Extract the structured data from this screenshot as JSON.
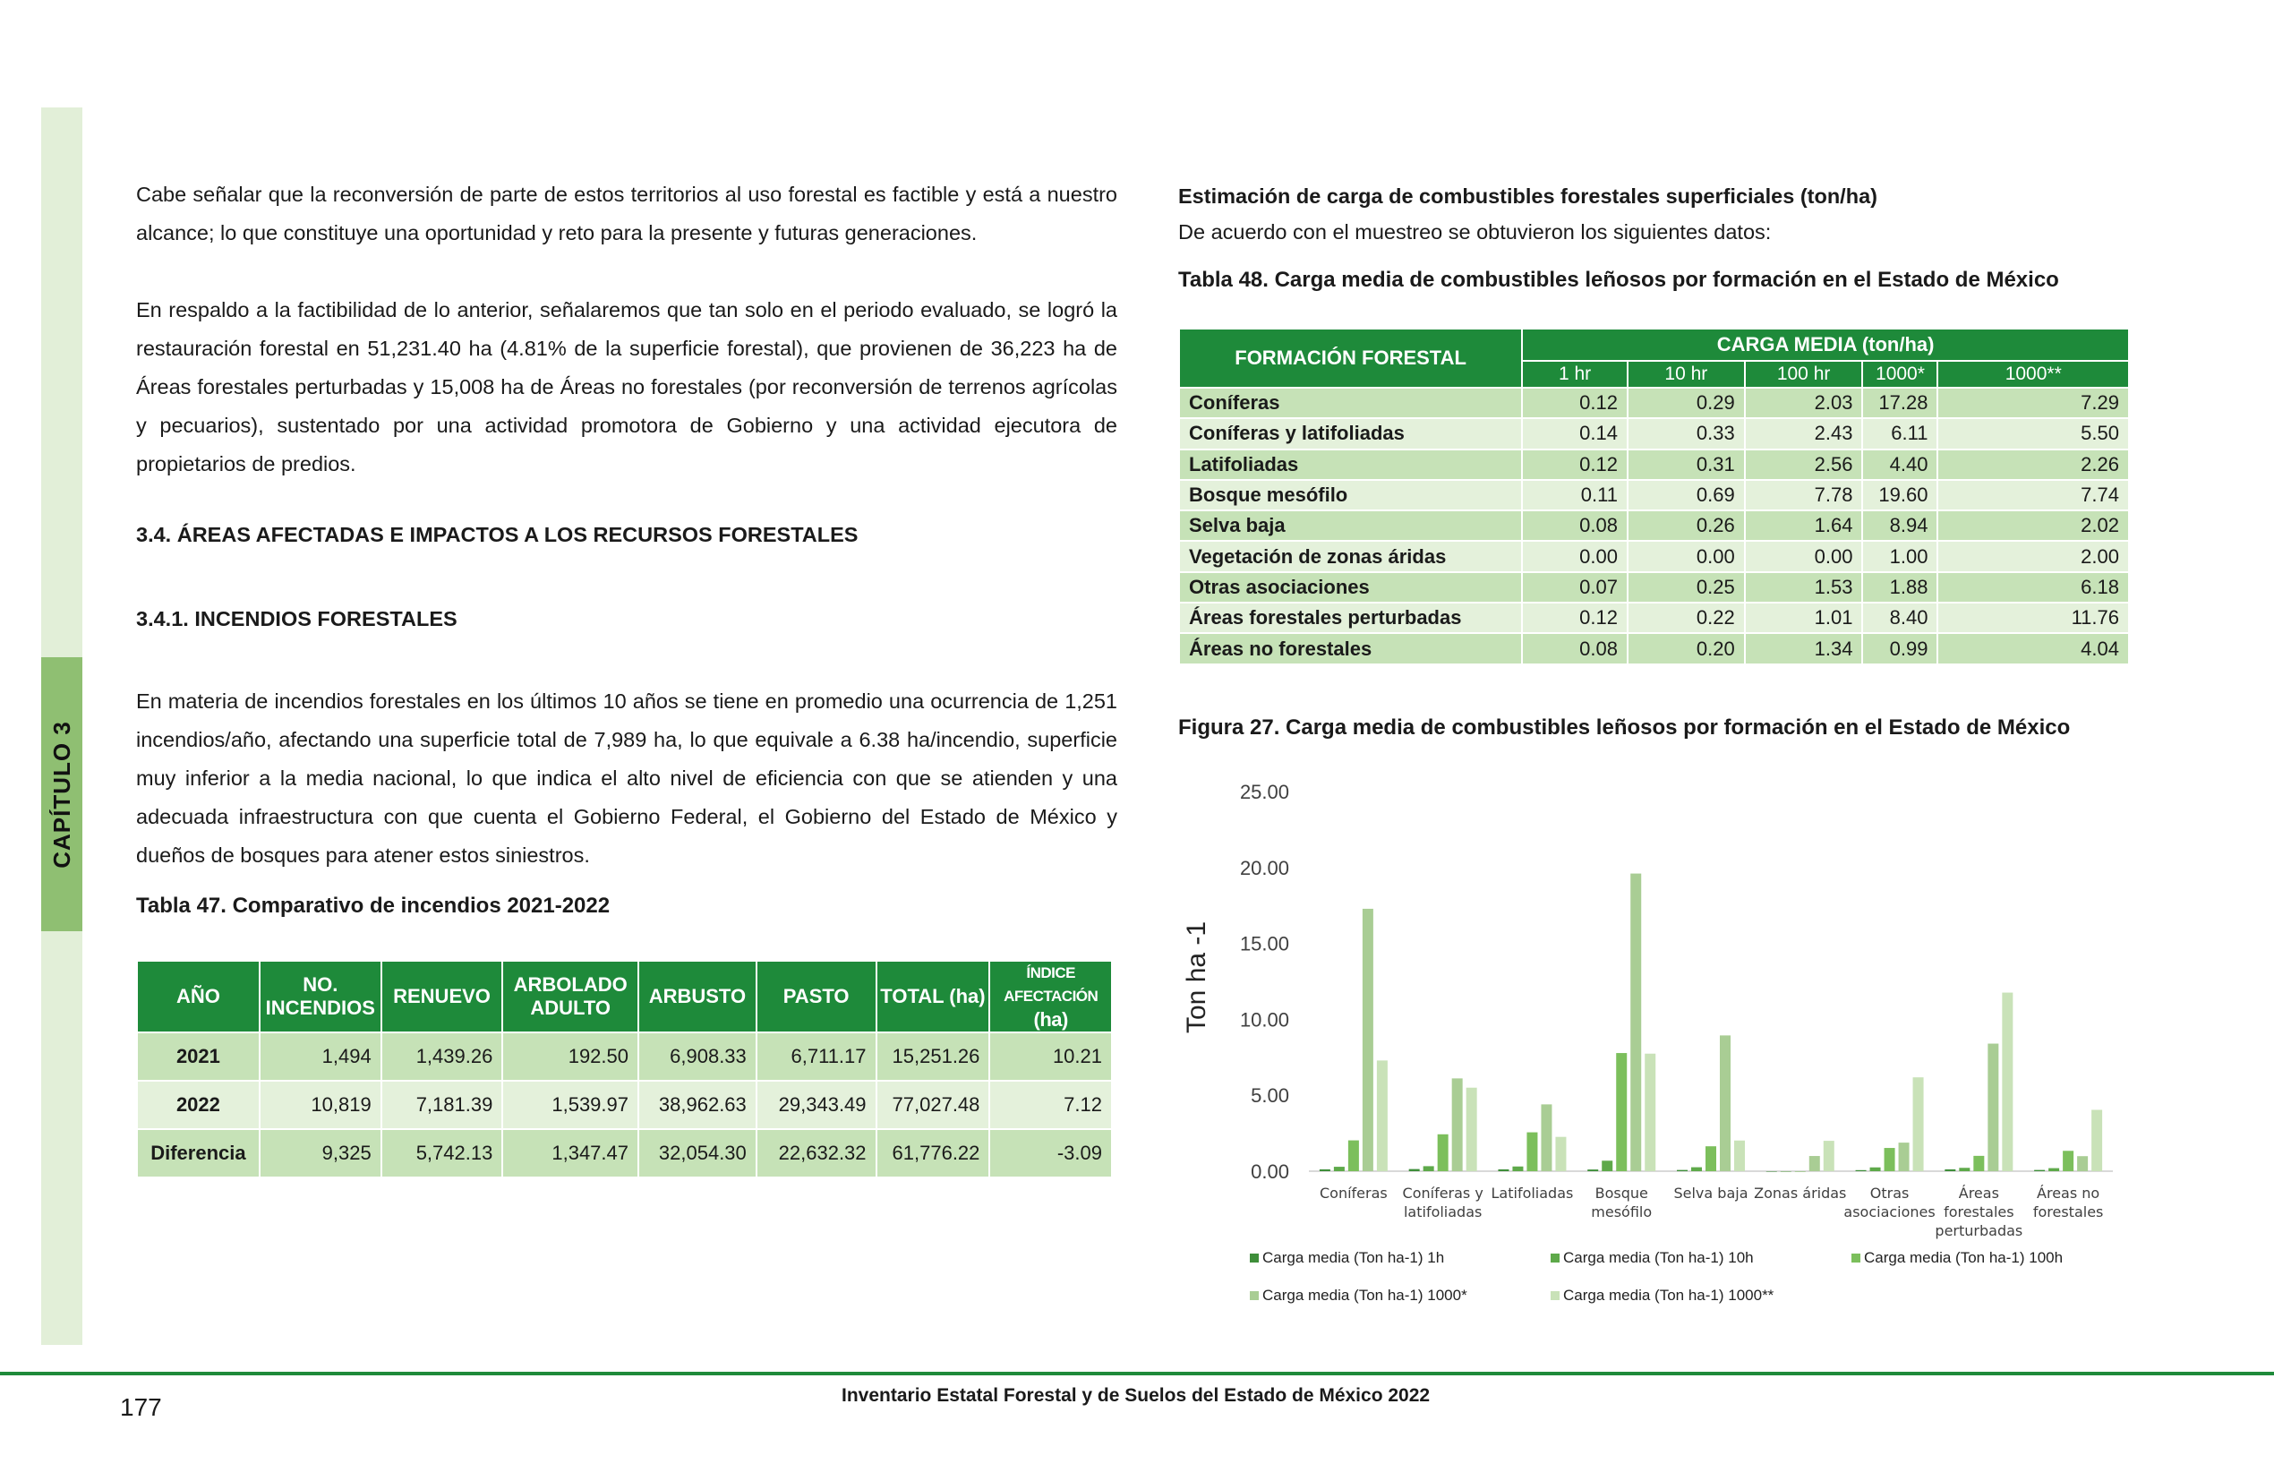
{
  "sidebar": {
    "chapter": "CAPÍTULO 3"
  },
  "left": {
    "p1": "Cabe señalar que la reconversión de parte de estos territorios al uso forestal es factible y está a nuestro alcance; lo que constituye una oportunidad y reto para la presente y futuras generaciones.",
    "p2": "En respaldo a la factibilidad de lo anterior, señalaremos que tan solo en el periodo evaluado, se logró la restauración forestal en 51,231.40 ha (4.81% de la superficie forestal), que provienen de 36,223 ha de Áreas forestales perturbadas y 15,008 ha de Áreas no forestales (por reconversión de terrenos agrícolas y pecuarios), sustentado por una actividad promotora de Gobierno y una actividad ejecutora de propietarios de predios.",
    "h34": "3.4. ÁREAS AFECTADAS E IMPACTOS A LOS RECURSOS FORESTALES",
    "h341": "3.4.1. INCENDIOS FORESTALES",
    "p3": "En materia de incendios forestales en los últimos 10 años se tiene en promedio una ocurrencia de 1,251 incendios/año, afectando una superficie total de 7,989 ha, lo que equivale a 6.38 ha/incendio, superficie muy inferior a la media nacional, lo que indica el alto nivel de eficiencia con que se atienden y una adecuada infraestructura con que cuenta el Gobierno Federal, el Gobierno del Estado de México y dueños de bosques para atener estos siniestros.",
    "t47_title": "Tabla 47. Comparativo de incendios 2021-2022"
  },
  "t47": {
    "headers": [
      "AÑO",
      "NO. INCENDIOS",
      "RENUEVO",
      "ARBOLADO ADULTO",
      "ARBUSTO",
      "PASTO",
      "TOTAL (ha)",
      "ÍNDICE AFECTACIÓN",
      "(ha)"
    ],
    "rows": [
      [
        "2021",
        "1,494",
        "1,439.26",
        "192.50",
        "6,908.33",
        "6,711.17",
        "15,251.26",
        "10.21"
      ],
      [
        "2022",
        "10,819",
        "7,181.39",
        "1,539.97",
        "38,962.63",
        "29,343.49",
        "77,027.48",
        "7.12"
      ],
      [
        "Diferencia",
        "9,325",
        "5,742.13",
        "1,347.47",
        "32,054.30",
        "22,632.32",
        "61,776.22",
        "-3.09"
      ]
    ]
  },
  "right": {
    "heading": "Estimación de carga de combustibles forestales superficiales (ton/ha)",
    "intro": "De acuerdo con el muestreo se obtuvieron los siguientes datos:",
    "t48_title": "Tabla 48. Carga media de combustibles leñosos por formación en el Estado de México",
    "fig_title": "Figura 27. Carga media de combustibles leñosos por formación en el Estado de México"
  },
  "t48": {
    "h_formacion": "FORMACIÓN FORESTAL",
    "h_carga": "CARGA MEDIA (ton/ha)",
    "sub": [
      "1 hr",
      "10 hr",
      "100 hr",
      "1000*",
      "1000**"
    ],
    "rows": [
      [
        "Coníferas",
        "0.12",
        "0.29",
        "2.03",
        "17.28",
        "7.29"
      ],
      [
        "Coníferas y latifoliadas",
        "0.14",
        "0.33",
        "2.43",
        "6.11",
        "5.50"
      ],
      [
        "Latifoliadas",
        "0.12",
        "0.31",
        "2.56",
        "4.40",
        "2.26"
      ],
      [
        "Bosque mesófilo",
        "0.11",
        "0.69",
        "7.78",
        "19.60",
        "7.74"
      ],
      [
        "Selva baja",
        "0.08",
        "0.26",
        "1.64",
        "8.94",
        "2.02"
      ],
      [
        "Vegetación de zonas áridas",
        "0.00",
        "0.00",
        "0.00",
        "1.00",
        "2.00"
      ],
      [
        "Otras asociaciones",
        "0.07",
        "0.25",
        "1.53",
        "1.88",
        "6.18"
      ],
      [
        "Áreas forestales perturbadas",
        "0.12",
        "0.22",
        "1.01",
        "8.40",
        "11.76"
      ],
      [
        "Áreas no forestales",
        "0.08",
        "0.20",
        "1.34",
        "0.99",
        "4.04"
      ]
    ]
  },
  "chart_data": {
    "type": "bar",
    "ylabel": "Ton ha -1",
    "ylim": [
      0,
      25
    ],
    "yticks": [
      "0.00",
      "5.00",
      "10.00",
      "15.00",
      "20.00",
      "25.00"
    ],
    "grid": false,
    "legend_position": "bottom",
    "categories": [
      [
        "Coníferas"
      ],
      [
        "Coníferas y",
        "latifoliadas"
      ],
      [
        "Latifoliadas"
      ],
      [
        "Bosque",
        "mesófilo"
      ],
      [
        "Selva baja"
      ],
      [
        "Zonas áridas"
      ],
      [
        "Otras",
        "asociaciones"
      ],
      [
        "Áreas",
        "forestales",
        "perturbadas"
      ],
      [
        "Áreas  no",
        "forestales"
      ]
    ],
    "series": [
      {
        "name": "Carga media (Ton ha-1) 1h",
        "color": "#3e8e3a",
        "values": [
          0.12,
          0.14,
          0.12,
          0.11,
          0.08,
          0.0,
          0.07,
          0.12,
          0.08
        ]
      },
      {
        "name": "Carga media (Ton ha-1) 10h",
        "color": "#5ea94a",
        "values": [
          0.29,
          0.33,
          0.31,
          0.69,
          0.26,
          0.0,
          0.25,
          0.22,
          0.2
        ]
      },
      {
        "name": "Carga media (Ton ha-1) 100h",
        "color": "#7cbf5c",
        "values": [
          2.03,
          2.43,
          2.56,
          7.78,
          1.64,
          0.0,
          1.53,
          1.01,
          1.34
        ]
      },
      {
        "name": "Carga media (Ton ha-1) 1000*",
        "color": "#a9cd94",
        "values": [
          17.28,
          6.11,
          4.4,
          19.6,
          8.94,
          1.0,
          1.88,
          8.4,
          0.99
        ]
      },
      {
        "name": "Carga media (Ton ha-1) 1000**",
        "color": "#c9e2b8",
        "values": [
          7.29,
          5.5,
          2.26,
          7.74,
          2.02,
          2.0,
          6.18,
          11.76,
          4.04
        ]
      }
    ]
  },
  "footer": {
    "page": "177",
    "title": "Inventario Estatal Forestal y de Suelos del Estado de México 2022"
  }
}
